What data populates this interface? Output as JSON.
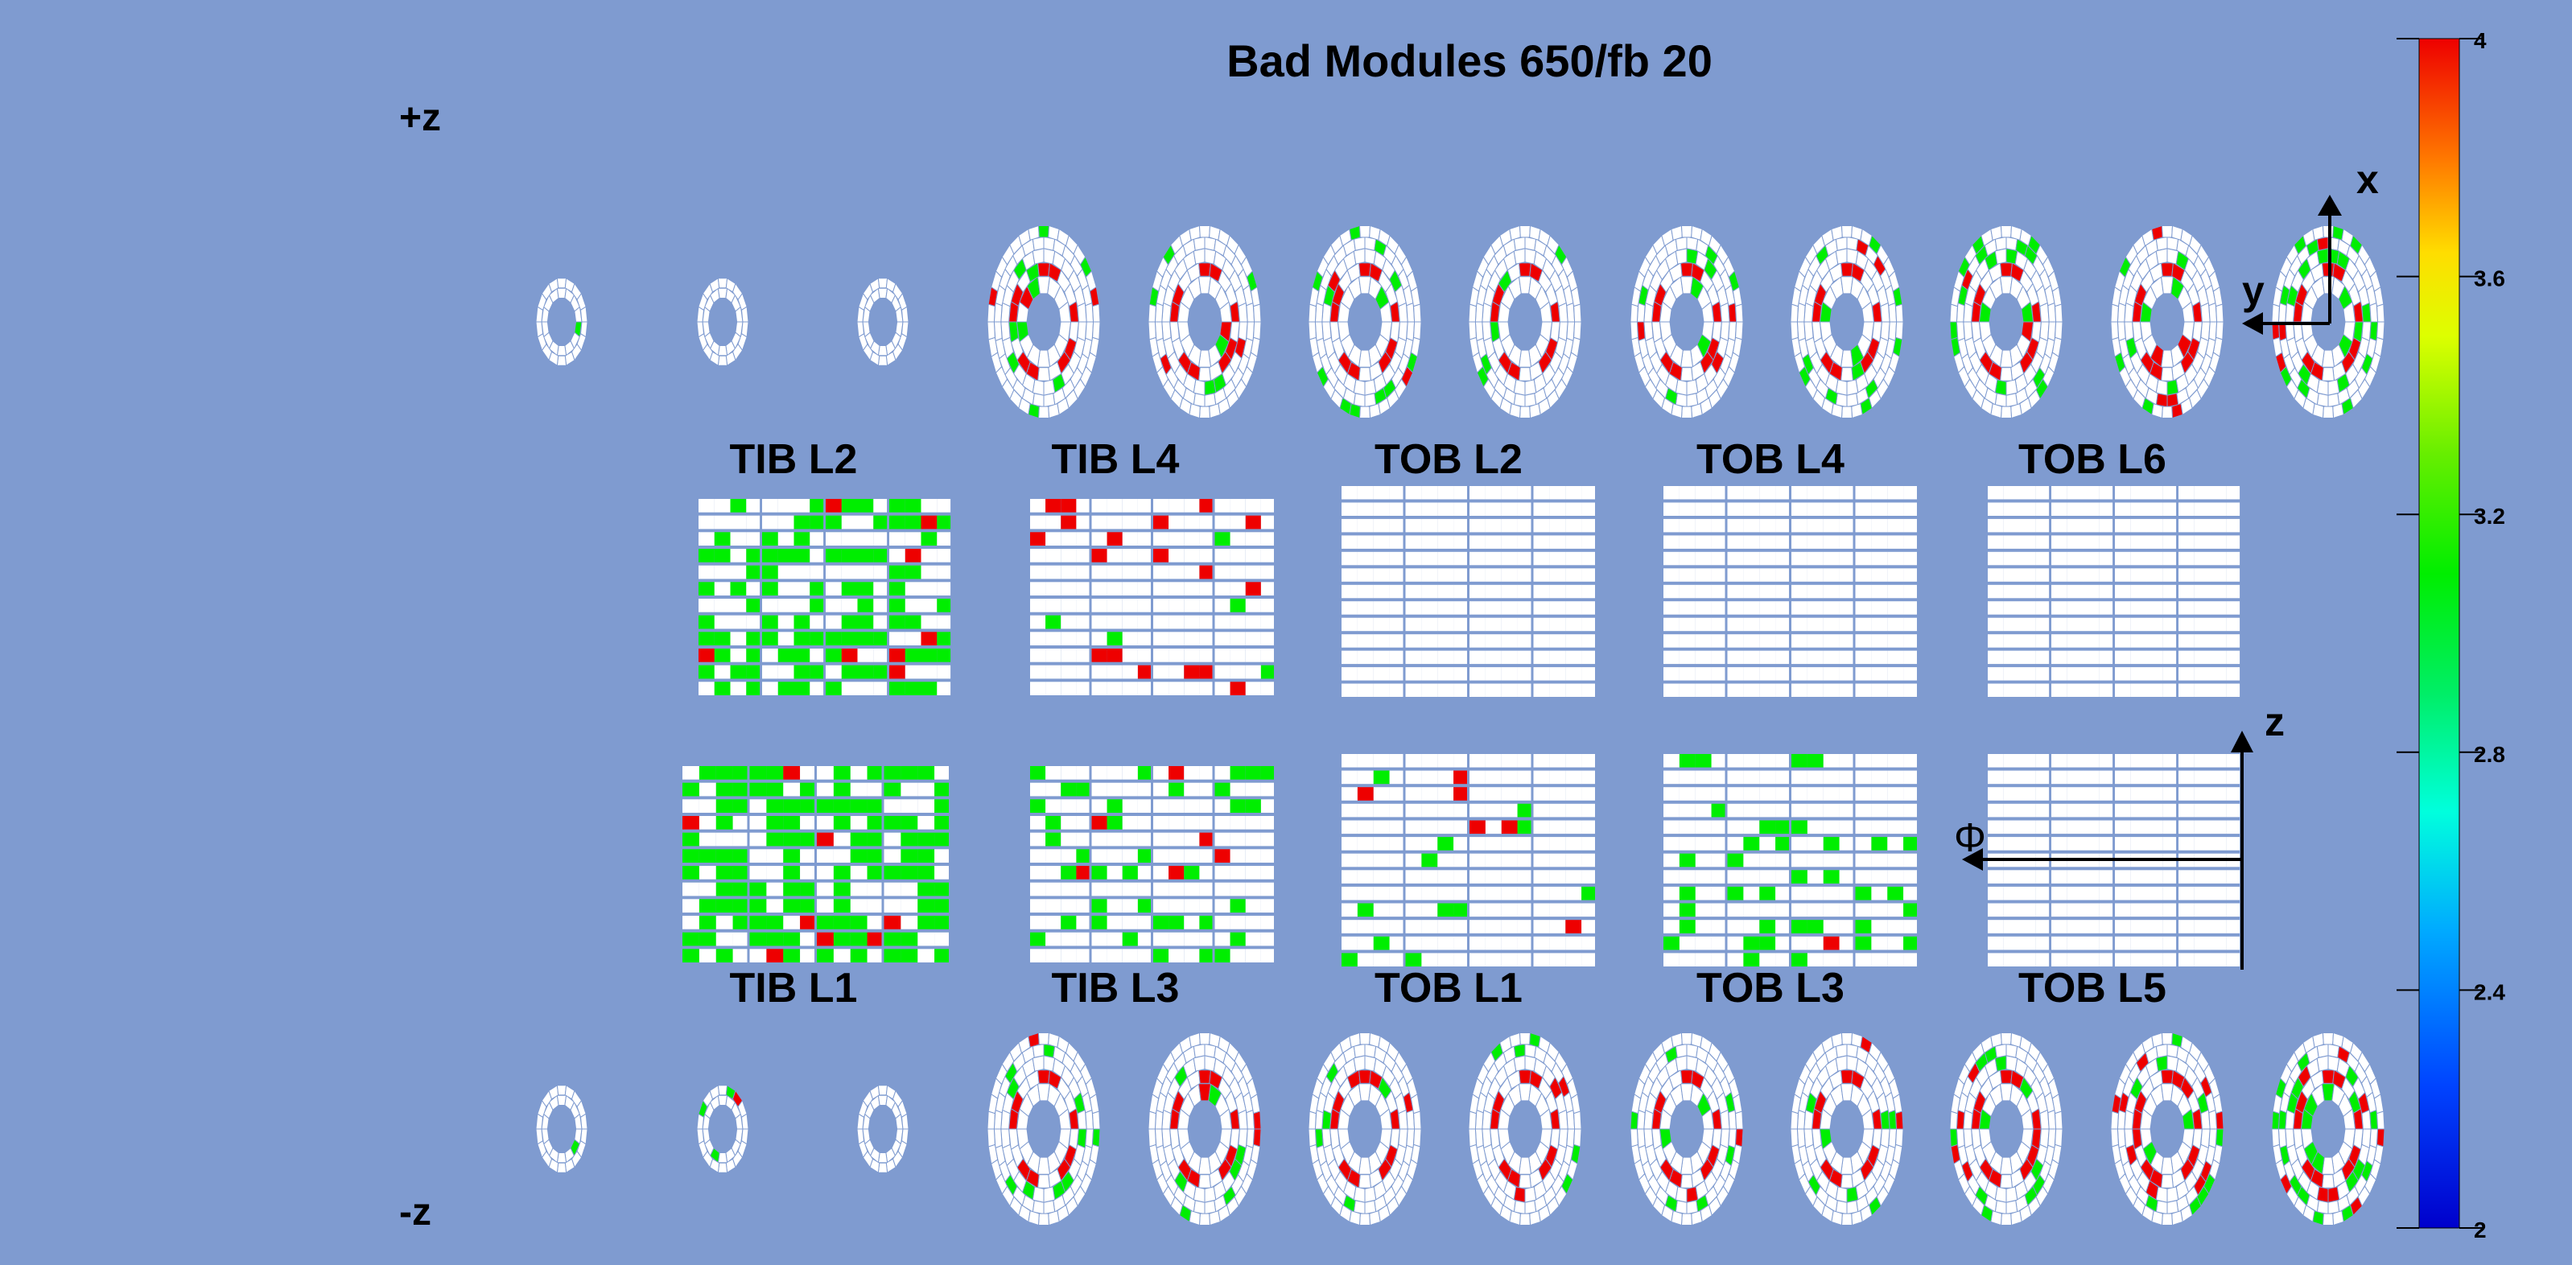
{
  "chart_data": {
    "type": "heatmap",
    "title": "Bad Modules 650/fb 20",
    "side_labels": {
      "plus": "+z",
      "minus": "-z"
    },
    "axes_labels": {
      "x": "x",
      "y": "y",
      "z": "z",
      "phi": "Φ"
    },
    "colorbar": {
      "min": 2,
      "max": 4,
      "ticks": [
        2,
        2.4,
        2.8,
        3.2,
        3.6,
        4
      ]
    },
    "colors": {
      "background": "#7f9bd0",
      "module_border": "#7f9bd0",
      "good_module": "#ffffff",
      "green": "#00ee00",
      "red": "#ee0000",
      "blue": "#0000dd"
    },
    "layers": [
      {
        "name": "TIB L2",
        "value_fraction": 0.62,
        "dominant": "green"
      },
      {
        "name": "TIB L4",
        "value_fraction": 0.03,
        "dominant": "red"
      },
      {
        "name": "TOB L2",
        "value_fraction": 0.0,
        "dominant": "none"
      },
      {
        "name": "TOB L4",
        "value_fraction": 0.0,
        "dominant": "none"
      },
      {
        "name": "TOB L6",
        "value_fraction": 0.0,
        "dominant": "none"
      },
      {
        "name": "TIB L1",
        "value_fraction": 0.72,
        "dominant": "green"
      },
      {
        "name": "TIB L3",
        "value_fraction": 0.22,
        "dominant": "green"
      },
      {
        "name": "TOB L1",
        "value_fraction": 0.05,
        "dominant": "red"
      },
      {
        "name": "TOB L3",
        "value_fraction": 0.2,
        "dominant": "green"
      },
      {
        "name": "TOB L5",
        "value_fraction": 0.0,
        "dominant": "none"
      }
    ],
    "disks_plus_z": [
      {
        "kind": "small",
        "value_fraction": 0.02
      },
      {
        "kind": "small",
        "value_fraction": 0.03
      },
      {
        "kind": "small",
        "value_fraction": 0.02
      },
      {
        "kind": "large",
        "value_fraction": 0.2
      },
      {
        "kind": "large",
        "value_fraction": 0.2
      },
      {
        "kind": "large",
        "value_fraction": 0.2
      },
      {
        "kind": "large",
        "value_fraction": 0.2
      },
      {
        "kind": "large",
        "value_fraction": 0.2
      },
      {
        "kind": "large",
        "value_fraction": 0.22
      },
      {
        "kind": "large",
        "value_fraction": 0.2
      },
      {
        "kind": "large",
        "value_fraction": 0.22
      },
      {
        "kind": "large",
        "value_fraction": 0.6
      }
    ],
    "disks_minus_z": [
      {
        "kind": "small",
        "value_fraction": 0.02
      },
      {
        "kind": "small",
        "value_fraction": 0.3
      },
      {
        "kind": "small",
        "value_fraction": 0.02
      },
      {
        "kind": "large",
        "value_fraction": 0.2
      },
      {
        "kind": "large",
        "value_fraction": 0.2
      },
      {
        "kind": "large",
        "value_fraction": 0.2
      },
      {
        "kind": "large",
        "value_fraction": 0.2
      },
      {
        "kind": "large",
        "value_fraction": 0.2
      },
      {
        "kind": "large",
        "value_fraction": 0.22
      },
      {
        "kind": "large",
        "value_fraction": 0.25
      },
      {
        "kind": "large",
        "value_fraction": 0.4
      },
      {
        "kind": "large",
        "value_fraction": 0.6
      }
    ]
  }
}
